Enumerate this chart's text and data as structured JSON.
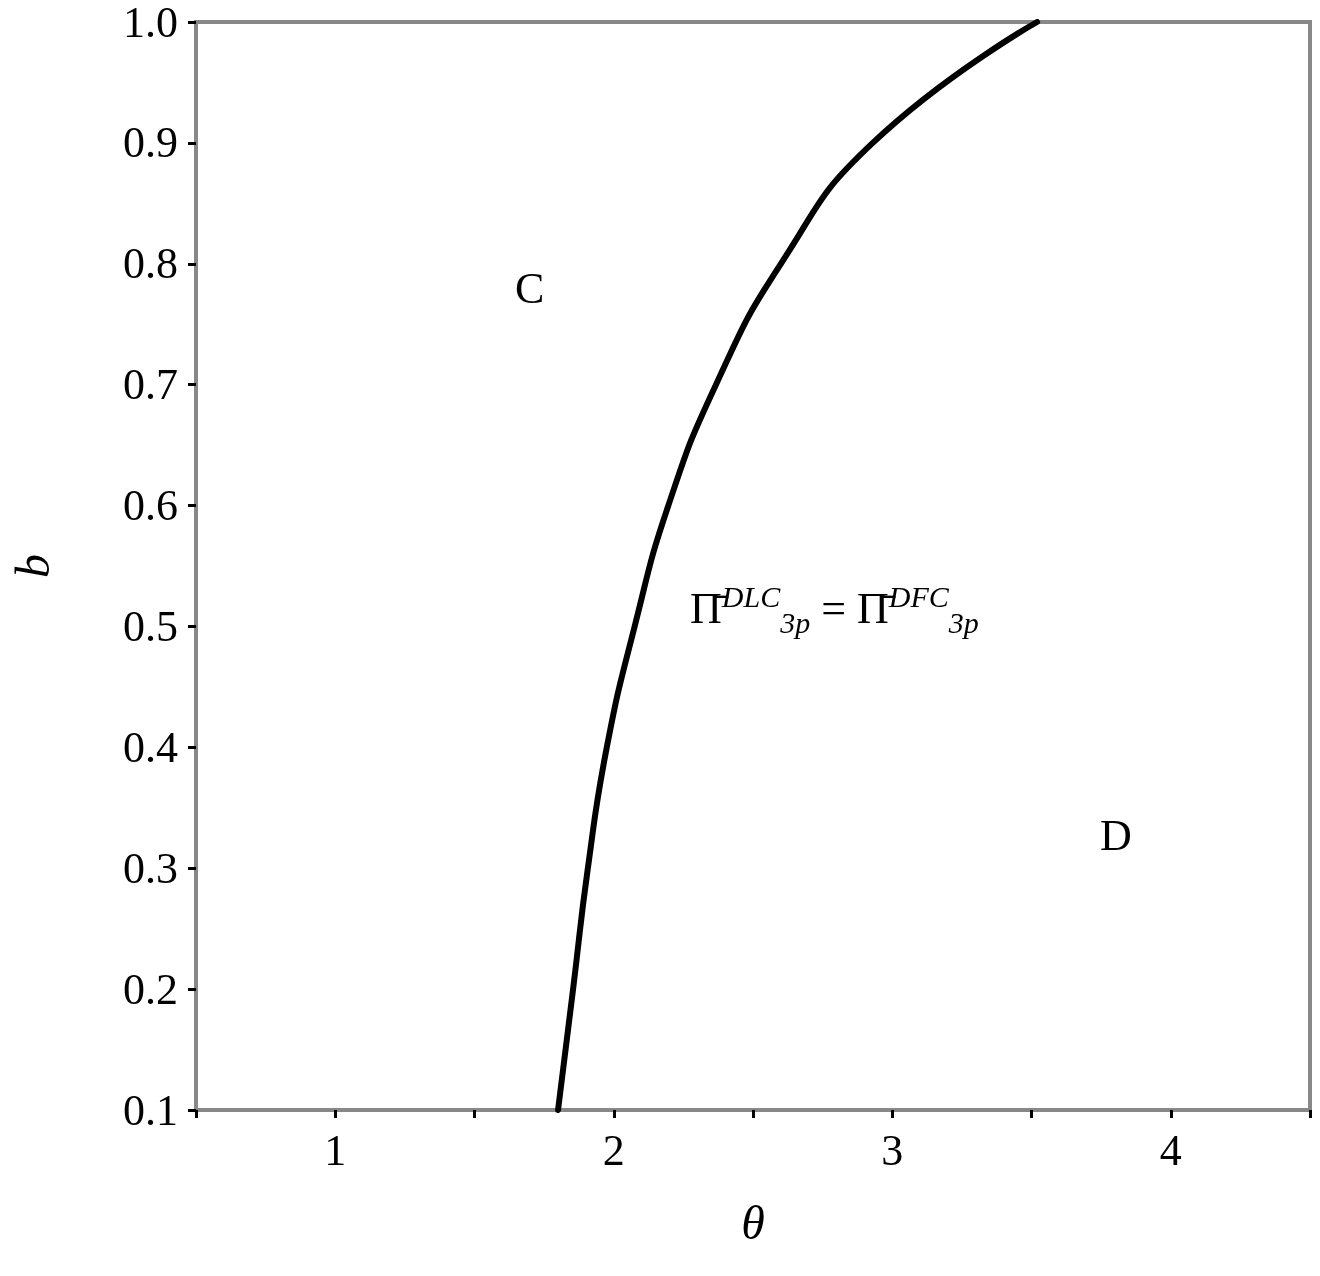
{
  "chart_data": {
    "type": "line",
    "xlabel": "θ",
    "ylabel": "b",
    "xlim": [
      0.5,
      4.5
    ],
    "ylim": [
      0.1,
      1.0
    ],
    "xticks": [
      {
        "value": 0.5,
        "label": null
      },
      1,
      {
        "value": 1.5,
        "label": null
      },
      2,
      {
        "value": 2.5,
        "label": null
      },
      3,
      {
        "value": 3.5,
        "label": null
      },
      4,
      {
        "value": 4.5,
        "label": null
      }
    ],
    "yticks": [
      0.1,
      0.2,
      0.3,
      0.4,
      0.5,
      0.6,
      0.7,
      0.8,
      0.9,
      {
        "value": 1.0,
        "label": "1.0"
      }
    ],
    "series": [
      {
        "color": "#000000",
        "x": [
          1.8,
          1.854,
          1.907,
          1.975,
          2.075,
          2.196,
          2.367,
          2.6,
          2.93,
          3.52
        ],
        "values": [
          0.1,
          0.2,
          0.3,
          0.4,
          0.5,
          0.6,
          0.7,
          0.8,
          0.9,
          1.0
        ]
      }
    ],
    "marker": "none",
    "line_style": "solid",
    "grid": false,
    "annotations": [
      "C",
      "D",
      "Π̄$^{DLC}$$_{3p}$ = Π̄$^{DFC}$$_{3p}$"
    ]
  }
}
